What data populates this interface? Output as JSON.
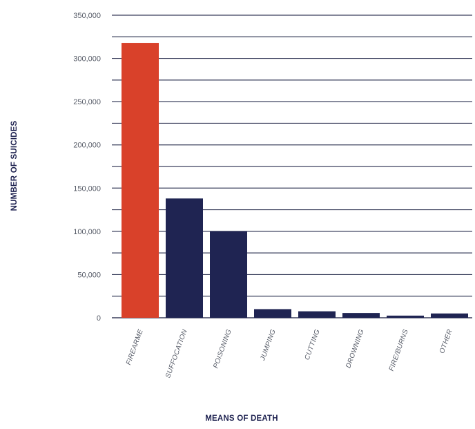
{
  "chart_data": {
    "type": "bar",
    "title": "",
    "xlabel": "MEANS OF DEATH",
    "ylabel": "NUMBER OF SUICIDES",
    "categories": [
      "FIREARME",
      "SUFFOCATION",
      "POISONING",
      "JUMPING",
      "CUTTING",
      "DROWNING",
      "FIRE/BURNS",
      "OTHER"
    ],
    "values": [
      318000,
      138000,
      100000,
      10000,
      7500,
      5500,
      2500,
      5000
    ],
    "ylim": [
      0,
      350000
    ],
    "yticks": [
      "0",
      "50,000",
      "100,000",
      "150,000",
      "200,000",
      "250,000",
      "300,000",
      "350,000"
    ],
    "grid": true,
    "legend": "none",
    "colors": {
      "highlight": "#d9412a",
      "bar": "#1f2452",
      "grid": "#3a3f5c"
    }
  }
}
